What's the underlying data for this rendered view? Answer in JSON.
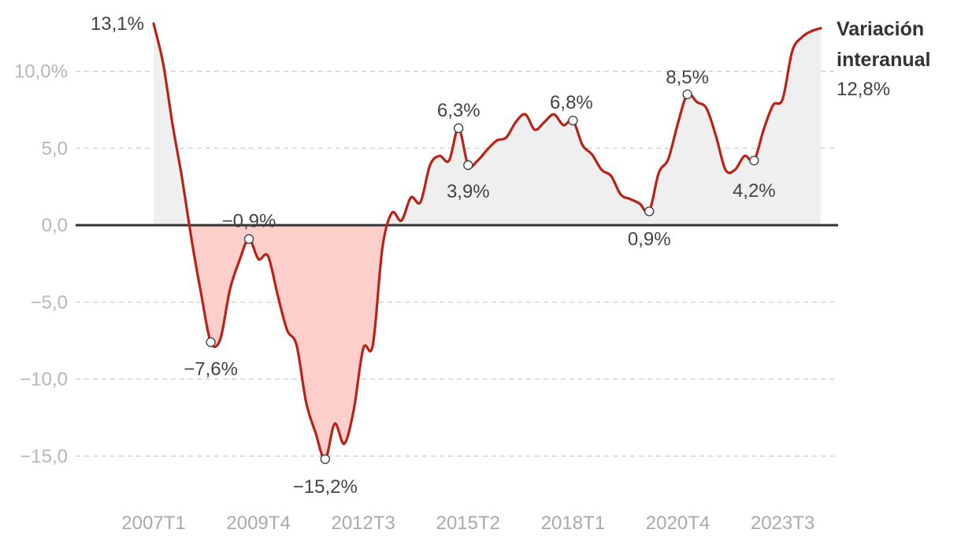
{
  "chart_data": {
    "type": "area",
    "title": "",
    "xlabel": "",
    "ylabel": "",
    "ylim": [
      -17,
      14
    ],
    "grid": true,
    "colors": {
      "line": "#b82218",
      "positive_fill": "#efefef",
      "negative_fill": "#fccfcb",
      "zero_line": "#333333",
      "grid": "#cccccc"
    },
    "y_ticks": [
      {
        "value": 10,
        "label": "10,0%"
      },
      {
        "value": 5,
        "label": "5,0"
      },
      {
        "value": 0,
        "label": "0,0"
      },
      {
        "value": -5,
        "label": "−5,0"
      },
      {
        "value": -10,
        "label": "−10,0"
      },
      {
        "value": -15,
        "label": "−15,0"
      }
    ],
    "x_ticks": [
      "2007T1",
      "2009T4",
      "2012T3",
      "2015T2",
      "2018T1",
      "2020T4",
      "2023T3"
    ],
    "x_tick_index": [
      0,
      11,
      22,
      33,
      44,
      55,
      66
    ],
    "series": [
      {
        "name": "Variación interanual",
        "values": [
          13.1,
          10.5,
          6.5,
          3.0,
          -1.0,
          -4.5,
          -7.6,
          -7.4,
          -4.2,
          -2.3,
          -0.9,
          -2.2,
          -2.0,
          -4.5,
          -6.8,
          -7.8,
          -11.5,
          -13.5,
          -15.2,
          -12.9,
          -14.2,
          -12.0,
          -8.0,
          -7.8,
          -1.5,
          0.8,
          0.3,
          1.8,
          1.5,
          3.9,
          4.5,
          4.2,
          6.3,
          3.9,
          4.2,
          4.9,
          5.5,
          5.7,
          6.7,
          7.2,
          6.2,
          6.7,
          7.2,
          6.5,
          6.8,
          5.2,
          4.6,
          3.6,
          3.2,
          2.0,
          1.7,
          1.4,
          0.9,
          3.4,
          4.3,
          6.6,
          8.5,
          8.0,
          7.6,
          5.8,
          3.6,
          3.6,
          4.5,
          4.2,
          6.2,
          7.8,
          8.2,
          11.3,
          12.2,
          12.6,
          12.8
        ]
      }
    ],
    "annotations": [
      {
        "index": 0,
        "text": "13,1%",
        "marker": false
      },
      {
        "index": 6,
        "text": "−7,6%",
        "marker": true
      },
      {
        "index": 10,
        "text": "−0,9%",
        "marker": true
      },
      {
        "index": 18,
        "text": "−15,2%",
        "marker": true
      },
      {
        "index": 32,
        "text": "6,3%",
        "marker": true
      },
      {
        "index": 33,
        "text": "3,9%",
        "marker": true
      },
      {
        "index": 44,
        "text": "6,8%",
        "marker": true
      },
      {
        "index": 52,
        "text": "0,9%",
        "marker": true
      },
      {
        "index": 56,
        "text": "8,5%",
        "marker": true
      },
      {
        "index": 63,
        "text": "4,2%",
        "marker": true
      }
    ],
    "end_label": {
      "title_lines": [
        "Variación",
        "interanual"
      ],
      "value": "12,8%"
    }
  }
}
